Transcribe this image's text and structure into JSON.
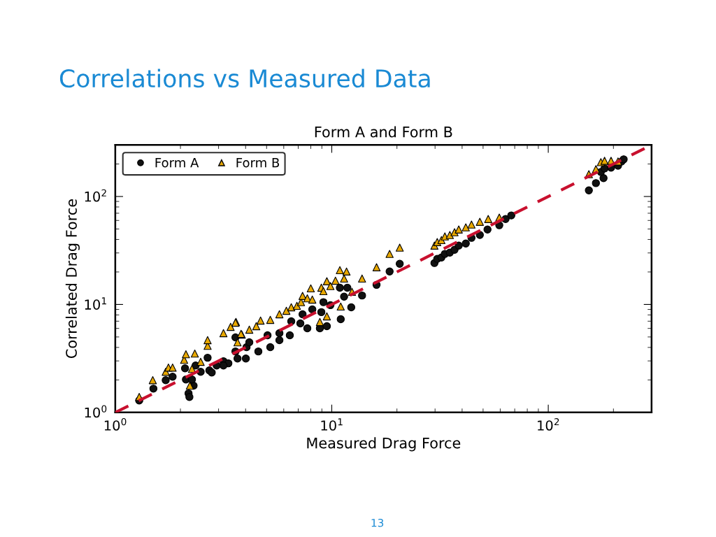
{
  "chart_data": {
    "type": "scatter",
    "title": "Correlations vs Measured Data",
    "subtitle": "Form A and Form B",
    "xlabel": "Measured Drag Force",
    "ylabel": "Correlated Drag Force",
    "log": "xy",
    "grid": false,
    "legend": "top left",
    "xlim": [
      1,
      300
    ],
    "ylim": [
      1,
      300
    ],
    "xticks": [
      {
        "value": 1,
        "label": "10$^{0}$"
      },
      {
        "value": 10,
        "label": "10$^{1}$"
      },
      {
        "value": 100,
        "label": "10$^{2}$"
      }
    ],
    "yticks": [
      {
        "value": 1,
        "label": "10$^{0}$"
      },
      {
        "value": 10,
        "label": "10$^{1}$"
      },
      {
        "value": 100,
        "label": "10$^{2}$"
      }
    ],
    "annotations": [
      "13"
    ],
    "series": [
      {
        "name": "Form A",
        "marker": "circle",
        "color": "#111111",
        "x": [
          1.29,
          1.5,
          1.71,
          1.84,
          2.12,
          2.1,
          2.18,
          2.2,
          2.3,
          2.26,
          2.35,
          2.48,
          2.67,
          2.72,
          2.94,
          3.16,
          3.33,
          3.59,
          3.67,
          4.01,
          4.04,
          2.79,
          3.16,
          3.59,
          4.16,
          4.58,
          5.05,
          5.2,
          5.73,
          5.73,
          6.4,
          6.5,
          7.16,
          7.33,
          7.71,
          8.13,
          8.95,
          8.81,
          9.15,
          9.49,
          9.86,
          10.9,
          11.4,
          11.8,
          12.3,
          13.8,
          11.0,
          16.1,
          18.5,
          20.6,
          29.8,
          30.7,
          32.1,
          33.3,
          35.1,
          36.9,
          38.6,
          41.6,
          44.2,
          48.3,
          52.4,
          59.4,
          63.5,
          67.5,
          154,
          166,
          180,
          175,
          182,
          195,
          210,
          218,
          223
        ],
        "values": [
          1.29,
          1.66,
          1.99,
          2.14,
          2.02,
          2.56,
          1.5,
          1.39,
          1.77,
          2.02,
          2.72,
          2.38,
          3.21,
          2.45,
          2.72,
          2.98,
          2.85,
          4.95,
          3.16,
          3.16,
          4.02,
          2.34,
          2.72,
          3.67,
          4.46,
          3.67,
          5.18,
          4.02,
          5.42,
          4.67,
          5.18,
          6.98,
          6.68,
          8.11,
          6.01,
          9.01,
          8.49,
          6.01,
          10.5,
          6.29,
          9.86,
          14.3,
          11.8,
          14.3,
          9.42,
          12.1,
          7.31,
          15.2,
          20.2,
          23.8,
          24.2,
          26.4,
          27.2,
          29.4,
          30.2,
          32.1,
          35.1,
          36.7,
          41.4,
          44.0,
          49.5,
          54.2,
          61.9,
          66.8,
          114,
          133,
          148,
          169,
          182,
          185,
          193,
          211,
          221
        ]
      },
      {
        "name": "Form B",
        "marker": "triangle",
        "color": "#e8a800",
        "x": [
          1.29,
          1.49,
          1.71,
          1.76,
          1.84,
          2.08,
          2.12,
          2.33,
          2.26,
          2.21,
          2.48,
          2.67,
          2.67,
          3.16,
          3.41,
          3.61,
          3.84,
          4.16,
          3.67,
          3.59,
          3.81,
          4.48,
          4.69,
          5.2,
          5.73,
          6.17,
          6.5,
          6.9,
          7.21,
          7.33,
          7.71,
          8.13,
          8.0,
          8.95,
          9.15,
          9.49,
          9.86,
          10.4,
          10.9,
          11.4,
          11.7,
          13.8,
          12.4,
          11.0,
          8.81,
          9.49,
          16.1,
          18.5,
          20.6,
          29.8,
          30.7,
          32.1,
          33.3,
          35.1,
          36.9,
          38.6,
          41.6,
          44.2,
          48.3,
          52.8,
          59.4,
          154,
          166,
          175,
          182,
          195,
          210
        ],
        "values": [
          1.39,
          1.99,
          2.38,
          2.6,
          2.6,
          3.07,
          3.46,
          3.51,
          2.53,
          1.77,
          2.94,
          4.14,
          4.67,
          5.42,
          6.2,
          6.88,
          5.26,
          5.84,
          4.46,
          6.78,
          5.34,
          6.29,
          7.09,
          7.2,
          8.11,
          8.74,
          9.42,
          9.71,
          10.5,
          12.0,
          11.4,
          11.1,
          14.1,
          14.3,
          13.3,
          16.4,
          14.8,
          16.6,
          20.8,
          17.4,
          20.2,
          17.4,
          13.1,
          9.57,
          6.88,
          7.76,
          22.1,
          29.4,
          33.6,
          35.1,
          37.8,
          39.5,
          42.7,
          44.0,
          46.7,
          49.5,
          51.8,
          55.0,
          58.3,
          61.9,
          63.8,
          161,
          179,
          208,
          214,
          214,
          211
        ]
      },
      {
        "type": "line",
        "line_style": "dashed",
        "marker": "none",
        "color": "#c8102e",
        "x": [
          1,
          300
        ],
        "values": [
          1,
          300
        ]
      }
    ]
  }
}
